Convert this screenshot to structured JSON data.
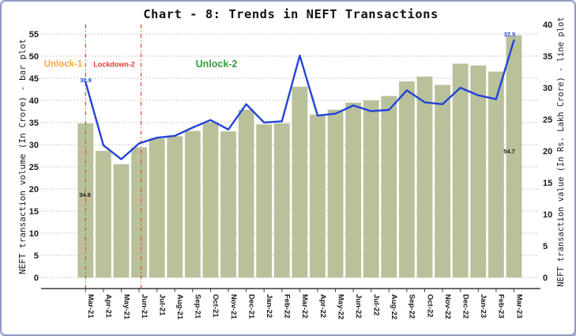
{
  "chart_data": {
    "type": "bar+line",
    "title": "Chart - 8: Trends in NEFT Transactions",
    "categories": [
      "Mar-21",
      "Apr-21",
      "May-21",
      "Jun-21",
      "Jul-21",
      "Aug-21",
      "Sep-21",
      "Oct-21",
      "Nov-21",
      "Dec-21",
      "Jan-22",
      "Feb-22",
      "Mar-22",
      "Apr-22",
      "May-22",
      "Jun-22",
      "Jul-22",
      "Aug-22",
      "Sep-22",
      "Oct-22",
      "Nov-22",
      "Dec-22",
      "Jan-23",
      "Feb-23",
      "Mar-23"
    ],
    "series": [
      {
        "name": "NEFT transaction volume (In Crore)",
        "type": "bar",
        "axis": "left",
        "color": "#b8c19a",
        "values": [
          34.8,
          28.6,
          25.6,
          29.4,
          31.4,
          31.9,
          33.1,
          35.1,
          33.0,
          37.9,
          34.6,
          34.8,
          43.1,
          36.8,
          37.9,
          39.5,
          40.0,
          41.0,
          44.3,
          45.4,
          43.5,
          48.3,
          47.9,
          46.5,
          54.7
        ]
      },
      {
        "name": "NEFT transaction value (In Rs. Lakh Crore)",
        "type": "line",
        "axis": "right",
        "color": "#2443d6",
        "values": [
          30.9,
          20.9,
          18.7,
          21.2,
          22.1,
          22.4,
          23.7,
          24.9,
          23.4,
          27.4,
          24.5,
          24.7,
          35.1,
          25.6,
          25.9,
          27.2,
          26.3,
          26.5,
          29.6,
          27.7,
          27.4,
          30.0,
          28.8,
          28.2,
          37.5
        ]
      }
    ],
    "left_axis": {
      "label": "NEFT transaction volume (In Crore) - bar plot",
      "min": 0,
      "max": 55,
      "step": 5
    },
    "right_axis": {
      "label": "NEFT transaction value (In Rs. Lakh Crore) - line plot",
      "min": 0,
      "max": 40,
      "step": 5
    },
    "grid": {
      "axis": "y",
      "style": "dotted",
      "color": "#a8a8a8"
    },
    "legend": "none",
    "annotations": {
      "phase_labels": [
        {
          "text": "Unlock-1",
          "color": "#f4a93c"
        },
        {
          "text": "Lockdown-2",
          "color": "#e8392f"
        },
        {
          "text": "Unlock-2",
          "color": "#3a9a3a"
        }
      ],
      "vlines": [
        {
          "category": "Mar-21",
          "color": "#ea4a3d",
          "style": "dash-dot"
        },
        {
          "category": "Jun-21",
          "color": "#ea4a3d",
          "style": "dash-dot"
        }
      ],
      "point_labels": [
        {
          "series": "bar",
          "category": "Mar-21",
          "text": "34.8",
          "color": "#1a1a1a"
        },
        {
          "series": "line",
          "category": "Mar-21",
          "text": "30.9",
          "color": "#2443d6"
        },
        {
          "series": "bar",
          "category": "Mar-23",
          "text": "54.7",
          "color": "#1a1a1a"
        },
        {
          "series": "line",
          "category": "Mar-23",
          "text": "37.5",
          "color": "#2443d6"
        }
      ]
    }
  }
}
